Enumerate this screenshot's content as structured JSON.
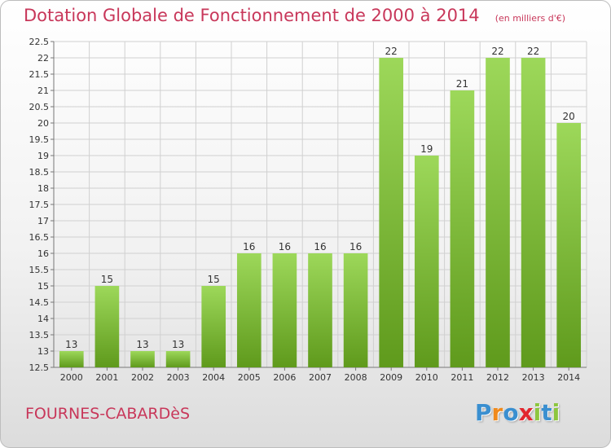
{
  "title": "Dotation Globale de Fonctionnement de 2000 à 2014",
  "units_note": "(en milliers d'€)",
  "commune": "FOURNES-CABARDèS",
  "logo": {
    "letters": [
      "P",
      "r",
      "o",
      "x",
      "i",
      "t",
      "i"
    ],
    "colors": [
      "#3a8fd0",
      "#f08a1c",
      "#3a8fd0",
      "#e2262e",
      "#8dc63f",
      "#3a8fd0",
      "#8dc63f"
    ]
  },
  "colors": {
    "accent": "#c8375a",
    "bar_top": "#9dd85a",
    "bar_bottom": "#5f9a1c",
    "grid": "#d0d0d0"
  },
  "chart_data": {
    "type": "bar",
    "categories": [
      "2000",
      "2001",
      "2002",
      "2003",
      "2004",
      "2005",
      "2006",
      "2007",
      "2008",
      "2009",
      "2010",
      "2011",
      "2012",
      "2013",
      "2014"
    ],
    "values": [
      13,
      15,
      13,
      13,
      15,
      16,
      16,
      16,
      16,
      22,
      19,
      21,
      22,
      22,
      20
    ],
    "data_labels": [
      "13",
      "15",
      "13",
      "13",
      "15",
      "16",
      "16",
      "16",
      "16",
      "22",
      "19",
      "21",
      "22",
      "22",
      "20"
    ],
    "ylim": [
      12.5,
      22.5
    ],
    "yticks": [
      12.5,
      13,
      13.5,
      14,
      14.5,
      15,
      15.5,
      16,
      16.5,
      17,
      17.5,
      18,
      18.5,
      19,
      19.5,
      20,
      20.5,
      21,
      21.5,
      22,
      22.5
    ],
    "ytick_labels": [
      "12.5",
      "13",
      "13.5",
      "14",
      "14.5",
      "15",
      "15.5",
      "16",
      "16.5",
      "17",
      "17.5",
      "18",
      "18.5",
      "19",
      "19.5",
      "20",
      "20.5",
      "21",
      "21.5",
      "22",
      "22.5"
    ],
    "grid": true,
    "legend": "none"
  }
}
